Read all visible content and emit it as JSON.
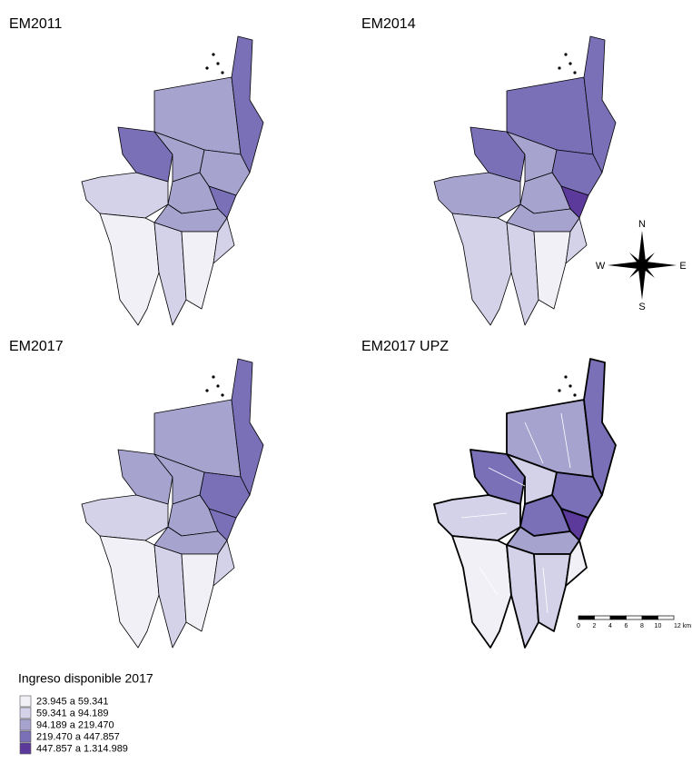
{
  "panels": [
    {
      "title": "EM2011"
    },
    {
      "title": "EM2014"
    },
    {
      "title": "EM2017"
    },
    {
      "title": "EM2017 UPZ"
    }
  ],
  "compass": {
    "north": "N",
    "south": "S",
    "east": "E",
    "west": "W"
  },
  "scale_bar": {
    "labels": [
      "0",
      "2",
      "4",
      "6",
      "8",
      "10",
      "12 km"
    ]
  },
  "legend": {
    "title": "Ingreso disponible 2017",
    "items": [
      {
        "label": "23.945 a 59.341",
        "color": "#f2f0f7"
      },
      {
        "label": "59.341 a 94.189",
        "color": "#d4d2e8"
      },
      {
        "label": "94.189 a 219.470",
        "color": "#a7a3cf"
      },
      {
        "label": "219.470 a 447.857",
        "color": "#7a70b8"
      },
      {
        "label": "447.857 a 1.314.989",
        "color": "#5b3a9c"
      }
    ]
  }
}
